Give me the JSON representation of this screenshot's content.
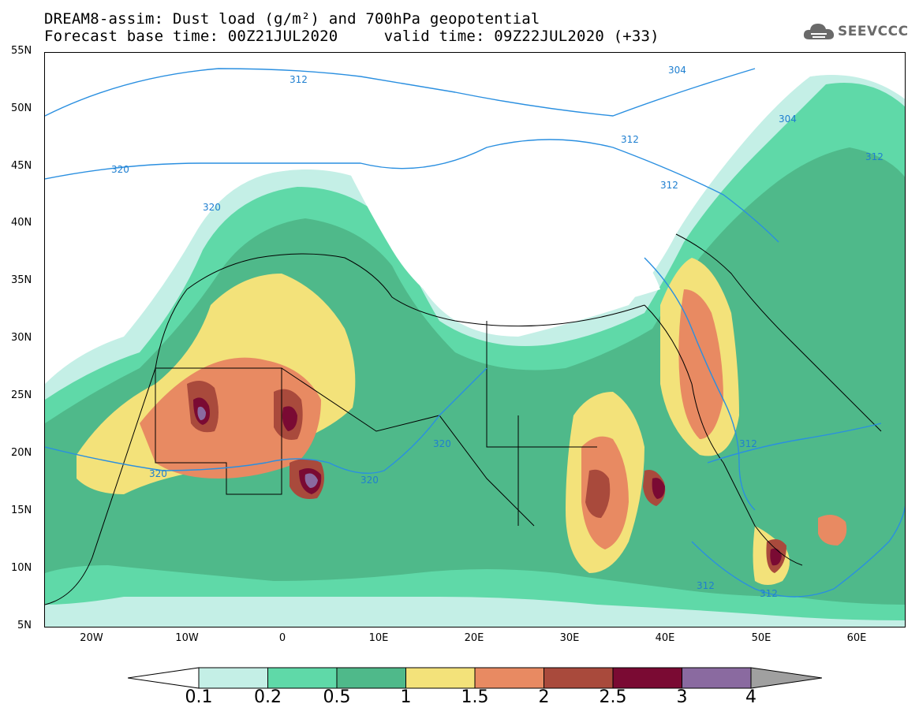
{
  "title": {
    "line1": "DREAM8-assim: Dust load (g/m²) and 700hPa geopotential",
    "line2": "Forecast base time: 00Z21JUL2020     valid time: 09Z22JUL2020 (+33)"
  },
  "logo": {
    "text": "SEEVCCC",
    "icon": "cloud-icon"
  },
  "axes": {
    "y_labels": [
      "55N",
      "50N",
      "45N",
      "40N",
      "35N",
      "30N",
      "25N",
      "20N",
      "15N",
      "10N",
      "5N"
    ],
    "x_labels": [
      "20W",
      "10W",
      "0",
      "10E",
      "20E",
      "30E",
      "40E",
      "50E",
      "60E"
    ],
    "lat_range": [
      5,
      55
    ],
    "lon_range": [
      -25,
      65
    ]
  },
  "contours": {
    "geopotential_labels": [
      "304",
      "304",
      "312",
      "312",
      "312",
      "312",
      "312",
      "312",
      "320",
      "320",
      "320",
      "320",
      "320",
      "312"
    ]
  },
  "colorbar": {
    "labels": [
      "0.1",
      "0.2",
      "0.5",
      "1",
      "1.5",
      "2",
      "2.5",
      "3",
      "4"
    ],
    "colors": [
      "#c4efe6",
      "#5fd9a8",
      "#4fb98a",
      "#f3e27a",
      "#e88a62",
      "#a94a3c",
      "#7a0a33",
      "#8a6aa0"
    ],
    "over_color": "#a0a0a0",
    "under_color": "#ffffff"
  }
}
